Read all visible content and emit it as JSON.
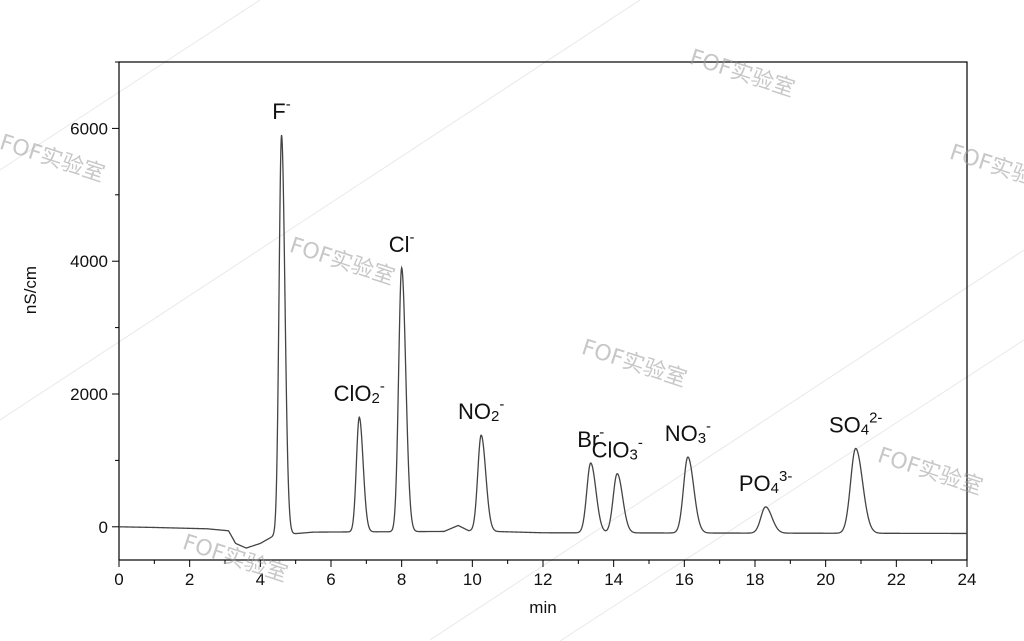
{
  "chart_data": {
    "type": "line",
    "xlabel": "min",
    "ylabel": "nS/cm",
    "xlim": [
      0,
      24
    ],
    "ylim": [
      -500,
      7000
    ],
    "xticks": [
      "0",
      "2",
      "4",
      "6",
      "8",
      "10",
      "12",
      "14",
      "16",
      "18",
      "20",
      "22",
      "24"
    ],
    "yticks": [
      "0",
      "2000",
      "4000",
      "6000"
    ],
    "grid": false,
    "peaks": [
      {
        "ion": "F",
        "charge": "-",
        "sub": "",
        "formula": "F",
        "rt": 4.6,
        "height": 5900
      },
      {
        "ion": "ClO",
        "charge": "-",
        "sub": "2",
        "rt": 6.8,
        "height": 1650
      },
      {
        "ion": "Cl",
        "charge": "-",
        "sub": "",
        "rt": 8.0,
        "height": 3900
      },
      {
        "ion": "NO",
        "charge": "-",
        "sub": "2",
        "rt": 10.25,
        "height": 1380
      },
      {
        "ion": "Br",
        "charge": "-",
        "sub": "",
        "rt": 13.35,
        "height": 960
      },
      {
        "ion": "ClO",
        "charge": "-",
        "sub": "3",
        "rt": 14.1,
        "height": 800
      },
      {
        "ion": "NO",
        "charge": "-",
        "sub": "3",
        "rt": 16.1,
        "height": 1050
      },
      {
        "ion": "PO",
        "charge": "3-",
        "sub": "4",
        "rt": 18.3,
        "height": 300
      },
      {
        "ion": "SO",
        "charge": "2-",
        "sub": "4",
        "rt": 20.85,
        "height": 1180
      }
    ],
    "baseline": [
      {
        "x": 0.0,
        "y": 0
      },
      {
        "x": 1.0,
        "y": -10
      },
      {
        "x": 2.5,
        "y": -30
      },
      {
        "x": 3.1,
        "y": -60
      },
      {
        "x": 3.3,
        "y": -250
      },
      {
        "x": 3.6,
        "y": -320
      },
      {
        "x": 4.0,
        "y": -250
      },
      {
        "x": 4.4,
        "y": -130
      },
      {
        "x": 5.5,
        "y": -80
      },
      {
        "x": 9.2,
        "y": -70
      },
      {
        "x": 9.6,
        "y": 20
      },
      {
        "x": 9.9,
        "y": -60
      },
      {
        "x": 12.0,
        "y": -90
      },
      {
        "x": 24.0,
        "y": -100
      }
    ],
    "line_color": "#444444"
  },
  "watermark": "FOF实验室"
}
